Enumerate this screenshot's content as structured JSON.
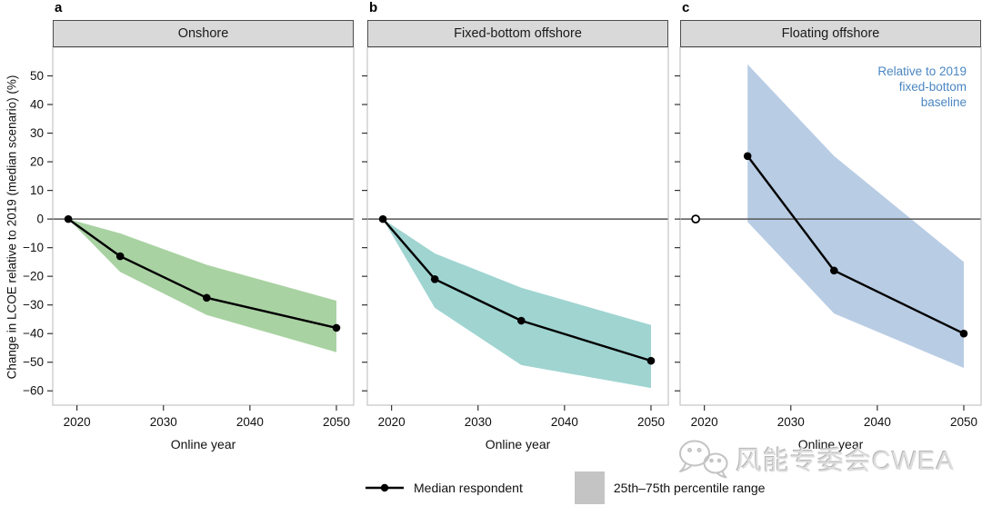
{
  "figure": {
    "ylabel": "Change in LCOE relative to 2019 (median scenario) (%)",
    "xlabel": "Online year"
  },
  "axes": {
    "yticks": [
      50,
      40,
      30,
      20,
      10,
      0,
      -10,
      -20,
      -30,
      -40,
      -50,
      -60
    ],
    "xticks": [
      2020,
      2030,
      2040,
      2050
    ],
    "ylim": [
      -65,
      60
    ],
    "xlim": [
      2017.2,
      2052
    ]
  },
  "colors": {
    "zero_line": "#555555",
    "panel_border": "#c4c4c4",
    "tick": "#333333",
    "median_line": "#000000",
    "header_bg": "#d9d9d9",
    "header_border": "#4d4d4d"
  },
  "chart_data": [
    {
      "type": "line",
      "panel_label": "a",
      "title": "Onshore",
      "xlabel": "Online year",
      "band_color": "#a9d2a2",
      "show_y_tick_labels": true,
      "x": [
        2019,
        2025,
        2035,
        2050
      ],
      "series": [
        {
          "name": "Median respondent",
          "values": [
            0,
            -13,
            -27.5,
            -38
          ]
        }
      ],
      "band": {
        "name": "25th–75th percentile range",
        "upper": [
          0,
          -5,
          -16,
          -28.5
        ],
        "lower": [
          0,
          -18.5,
          -33.5,
          -46.5
        ]
      }
    },
    {
      "type": "line",
      "panel_label": "b",
      "title": "Fixed-bottom offshore",
      "xlabel": "Online year",
      "band_color": "#9fd4d1",
      "show_y_tick_labels": false,
      "x": [
        2019,
        2025,
        2035,
        2050
      ],
      "series": [
        {
          "name": "Median respondent",
          "values": [
            0,
            -21,
            -35.5,
            -49.5
          ]
        }
      ],
      "band": {
        "name": "25th–75th percentile range",
        "upper": [
          0,
          -12,
          -24,
          -37
        ],
        "lower": [
          0,
          -31,
          -51,
          -59
        ]
      }
    },
    {
      "type": "line",
      "panel_label": "c",
      "title": "Floating offshore",
      "xlabel": "Online year",
      "band_color": "#b8cce4",
      "show_y_tick_labels": false,
      "x": [
        2025,
        2035,
        2050
      ],
      "series": [
        {
          "name": "Median respondent",
          "values": [
            22,
            -18,
            -40
          ]
        }
      ],
      "band": {
        "name": "25th–75th percentile range",
        "upper": [
          54,
          22,
          -15
        ],
        "lower": [
          -1,
          -33,
          -52
        ]
      },
      "open_marker": {
        "x": 2019,
        "y": 0
      },
      "annotation": {
        "text_lines": [
          "Relative to 2019",
          "fixed-bottom",
          "baseline"
        ],
        "color": "#4a86c2"
      }
    }
  ],
  "legend": {
    "items": [
      {
        "symbol": "line-dot",
        "label": "Median respondent"
      },
      {
        "symbol": "band-swatch",
        "label": "25th–75th percentile range",
        "color": "#c4c4c4"
      }
    ]
  },
  "watermark": {
    "text": "风能专委会CWEA",
    "icon": "wechat-icon"
  }
}
